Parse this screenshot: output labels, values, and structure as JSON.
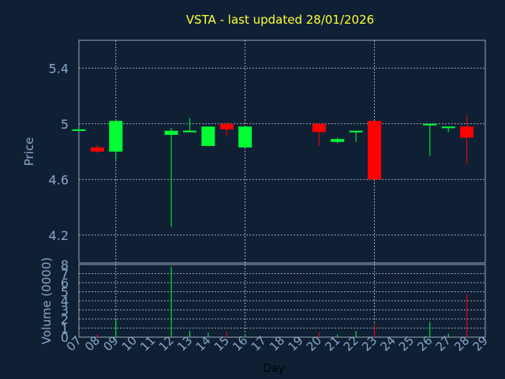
{
  "title": "VSTA - last updated 28/01/2026",
  "colors": {
    "background": "#0f2035",
    "frame": "#9aa8b8",
    "grid": "#c8d2dc",
    "tick_text": "#8aa8c8",
    "title": "#ffff33",
    "axis_title": "#000000",
    "up": "#00ff33",
    "down": "#ff0000"
  },
  "chart_data": [
    {
      "type": "candlestick",
      "ylabel": "Price",
      "ylim": [
        4.0,
        5.6
      ],
      "yticks": [
        "4.2",
        "4.6",
        "5",
        "5.4"
      ],
      "ytick_values": [
        4.2,
        4.6,
        5.0,
        5.4
      ],
      "grid": true,
      "candles": [
        {
          "day": "07",
          "open": 4.95,
          "high": 4.96,
          "low": 4.95,
          "close": 4.96
        },
        {
          "day": "08",
          "open": 4.83,
          "high": 4.85,
          "low": 4.79,
          "close": 4.8
        },
        {
          "day": "09",
          "open": 4.8,
          "high": 5.03,
          "low": 4.74,
          "close": 5.02
        },
        {
          "day": "12",
          "open": 4.92,
          "high": 4.97,
          "low": 4.26,
          "close": 4.95
        },
        {
          "day": "13",
          "open": 4.94,
          "high": 5.04,
          "low": 4.94,
          "close": 4.95
        },
        {
          "day": "14",
          "open": 4.84,
          "high": 4.98,
          "low": 4.84,
          "close": 4.98
        },
        {
          "day": "15",
          "open": 5.0,
          "high": 5.01,
          "low": 4.91,
          "close": 4.96
        },
        {
          "day": "16",
          "open": 4.83,
          "high": 4.98,
          "low": 4.83,
          "close": 4.98
        },
        {
          "day": "20",
          "open": 5.0,
          "high": 5.0,
          "low": 4.84,
          "close": 4.94
        },
        {
          "day": "21",
          "open": 4.87,
          "high": 4.9,
          "low": 4.86,
          "close": 4.89
        },
        {
          "day": "22",
          "open": 4.94,
          "high": 4.95,
          "low": 4.87,
          "close": 4.95
        },
        {
          "day": "23",
          "open": 5.02,
          "high": 5.02,
          "low": 4.6,
          "close": 4.6
        },
        {
          "day": "26",
          "open": 4.99,
          "high": 5.0,
          "low": 4.77,
          "close": 5.0
        },
        {
          "day": "27",
          "open": 4.97,
          "high": 4.98,
          "low": 4.94,
          "close": 4.98
        },
        {
          "day": "28",
          "open": 4.98,
          "high": 5.06,
          "low": 4.71,
          "close": 4.9
        }
      ]
    },
    {
      "type": "bar",
      "ylabel": "Volume (0000)",
      "xlabel": "Day",
      "ylim": [
        0,
        8
      ],
      "yticks": [
        "0",
        "1",
        "2",
        "3",
        "4",
        "5",
        "6",
        "7",
        "8"
      ],
      "categories": [
        "07",
        "08",
        "09",
        "10",
        "11",
        "12",
        "13",
        "14",
        "15",
        "16",
        "17",
        "18",
        "19",
        "20",
        "21",
        "22",
        "23",
        "24",
        "25",
        "26",
        "27",
        "28",
        "29"
      ],
      "volumes": [
        {
          "day": "07",
          "value": 0.1,
          "dir": "up"
        },
        {
          "day": "08",
          "value": 0.3,
          "dir": "down"
        },
        {
          "day": "09",
          "value": 1.9,
          "dir": "up"
        },
        {
          "day": "12",
          "value": 7.8,
          "dir": "up"
        },
        {
          "day": "13",
          "value": 0.7,
          "dir": "up"
        },
        {
          "day": "14",
          "value": 0.5,
          "dir": "up"
        },
        {
          "day": "15",
          "value": 0.6,
          "dir": "down"
        },
        {
          "day": "16",
          "value": 0.3,
          "dir": "up"
        },
        {
          "day": "20",
          "value": 0.5,
          "dir": "down"
        },
        {
          "day": "21",
          "value": 0.3,
          "dir": "up"
        },
        {
          "day": "22",
          "value": 0.7,
          "dir": "up"
        },
        {
          "day": "23",
          "value": 1.5,
          "dir": "down"
        },
        {
          "day": "26",
          "value": 1.7,
          "dir": "up"
        },
        {
          "day": "27",
          "value": 0.4,
          "dir": "up"
        },
        {
          "day": "28",
          "value": 4.7,
          "dir": "down"
        }
      ]
    }
  ]
}
